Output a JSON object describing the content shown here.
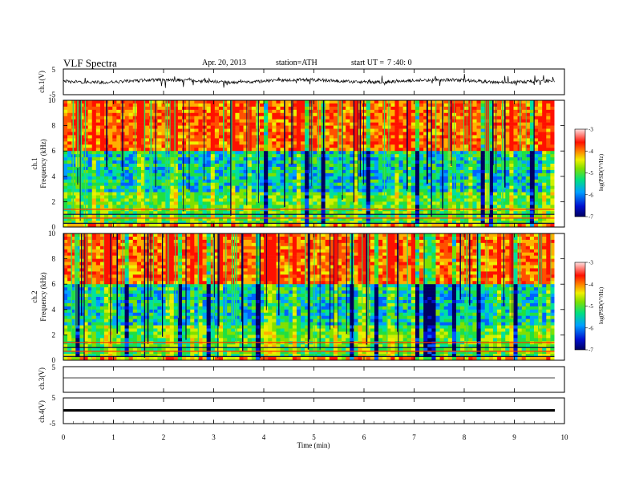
{
  "header": {
    "title": "VLF Spectra",
    "date": "Apr. 20, 2013",
    "station": "station=ATH",
    "start_label": "start UT =",
    "start_time": "7 :40: 0"
  },
  "chart_data": [
    {
      "type": "line",
      "panel": "ch1-waveform",
      "ylabel": "ch.1(V)",
      "ylim": [
        -5,
        5
      ],
      "yticks": [
        "5",
        "-5"
      ],
      "xlim": [
        0,
        10
      ],
      "description_level_V": 0,
      "color": "#000000"
    },
    {
      "type": "heatmap",
      "panel": "ch1-spectrogram",
      "ylabel": [
        "ch.1",
        "Frequency (kHz)"
      ],
      "ylim": [
        0,
        10
      ],
      "yticks": [
        "0",
        "2",
        "4",
        "6",
        "8",
        "10"
      ],
      "xlim": [
        0,
        9.8
      ],
      "colorbar": {
        "label": "log(PSD(V²/Hz)",
        "ticks": [
          "-3",
          "-4",
          "-5",
          "-6",
          "-7"
        ],
        "range": [
          -7,
          -3
        ],
        "colors": [
          "#000060",
          "#0010d0",
          "#00a0ff",
          "#00e080",
          "#80e000",
          "#f0f000",
          "#ff8000",
          "#ff1000",
          "#ffe0e0"
        ]
      }
    },
    {
      "type": "heatmap",
      "panel": "ch2-spectrogram",
      "ylabel": [
        "ch.2",
        "Frequency (kHz)"
      ],
      "ylim": [
        0,
        10
      ],
      "yticks": [
        "0",
        "2",
        "4",
        "6",
        "8",
        "10"
      ],
      "xlim": [
        0,
        9.8
      ],
      "colorbar": {
        "label": "log(PSD(V²/Hz)",
        "ticks": [
          "-3",
          "-4",
          "-5",
          "-6",
          "-7"
        ],
        "range": [
          -7,
          -3
        ]
      }
    },
    {
      "type": "line",
      "panel": "ch3-waveform",
      "ylabel": "ch.3(V)",
      "ylim": [
        -5,
        5
      ],
      "yticks": [
        "5"
      ],
      "level_V": 0
    },
    {
      "type": "line",
      "panel": "ch4-waveform",
      "ylabel": "ch.4(V)",
      "ylim": [
        -5,
        5
      ],
      "yticks": [
        "5",
        "-5"
      ],
      "level_V": 0
    }
  ],
  "xaxis": {
    "label": "Time (min)",
    "ticks": [
      "0",
      "1",
      "2",
      "3",
      "4",
      "5",
      "6",
      "7",
      "8",
      "9",
      "10"
    ],
    "range": [
      0,
      10
    ]
  }
}
